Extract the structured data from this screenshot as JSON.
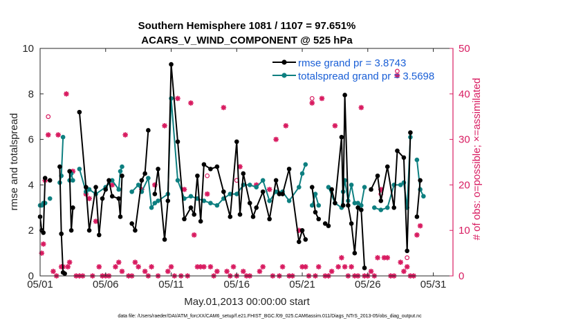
{
  "chart_data": {
    "type": "line",
    "title_line1": "Southern Hemisphere 1081 / 1107 = 97.651%",
    "title_line2": "ACARS_V_WIND_COMPONENT @ 525 hPa",
    "xlabel": "May.01,2013 00:00:00 start",
    "ylabel_left": "rmse and totalspread",
    "ylabel_right": "# of obs: o=possible; ×=assimilated",
    "xlim": [
      0,
      31.5
    ],
    "ylim_left": [
      0,
      10
    ],
    "ylim_right": [
      0,
      50
    ],
    "x_ticks": [
      {
        "x": 0,
        "label": "05/01"
      },
      {
        "x": 5,
        "label": "05/06"
      },
      {
        "x": 10,
        "label": "05/11"
      },
      {
        "x": 15,
        "label": "05/16"
      },
      {
        "x": 20,
        "label": "05/21"
      },
      {
        "x": 25,
        "label": "05/26"
      },
      {
        "x": 30,
        "label": "05/31"
      }
    ],
    "y_ticks_left": [
      "0",
      "2",
      "4",
      "6",
      "8",
      "10"
    ],
    "y_ticks_right": [
      "0",
      "10",
      "20",
      "30",
      "40",
      "50"
    ],
    "colors": {
      "rmse": "#000000",
      "spread": "#0d7f80",
      "obs": "#d81b60",
      "legend_text": "#1a5fd6",
      "frame": "#262626"
    },
    "legend": {
      "rmse": "rmse grand pr = 3.8743",
      "spread": "totalspread grand pr = 3.5698"
    },
    "rmse": [
      {
        "x": 0.0,
        "y": 2.6
      },
      {
        "x": 0.12,
        "y": 2.0
      },
      {
        "x": 0.25,
        "y": 1.9
      },
      {
        "x": 0.38,
        "y": 4.3
      },
      {
        "x": 0.62,
        "y": null
      },
      {
        "x": 0.75,
        "y": 4.2
      },
      {
        "x": 1.0,
        "y": null
      },
      {
        "x": 1.5,
        "y": 4.8
      },
      {
        "x": 1.62,
        "y": 1.85
      },
      {
        "x": 1.75,
        "y": 0.15
      },
      {
        "x": 1.88,
        "y": 0.1
      },
      {
        "x": 2.0,
        "y": null
      },
      {
        "x": 2.25,
        "y": 4.6
      },
      {
        "x": 2.38,
        "y": 2.0
      },
      {
        "x": 2.5,
        "y": 3.0
      },
      {
        "x": 2.6,
        "y": null
      },
      {
        "x": 3.0,
        "y": 7.2
      },
      {
        "x": 3.5,
        "y": 3.9
      },
      {
        "x": 3.75,
        "y": 2.0
      },
      {
        "x": 4.25,
        "y": 3.9
      },
      {
        "x": 4.5,
        "y": 1.8
      },
      {
        "x": 4.75,
        "y": 3.4
      },
      {
        "x": 5.0,
        "y": 3.8
      },
      {
        "x": 5.25,
        "y": 4.2
      },
      {
        "x": 5.5,
        "y": 3.5
      },
      {
        "x": 6.0,
        "y": 3.4
      },
      {
        "x": 6.12,
        "y": 2.6
      },
      {
        "x": 6.25,
        "y": 4.4
      },
      {
        "x": 6.5,
        "y": null
      },
      {
        "x": 7.0,
        "y": 2.3
      },
      {
        "x": 7.25,
        "y": 2.0
      },
      {
        "x": 7.75,
        "y": 4.2
      },
      {
        "x": 8.0,
        "y": 4.5
      },
      {
        "x": 8.25,
        "y": 6.4
      },
      {
        "x": 8.5,
        "y": null
      },
      {
        "x": 8.75,
        "y": 3.6
      },
      {
        "x": 9.0,
        "y": 4.7
      },
      {
        "x": 9.5,
        "y": 1.6
      },
      {
        "x": 9.75,
        "y": 3.3
      },
      {
        "x": 10.0,
        "y": 9.3
      },
      {
        "x": 10.5,
        "y": 5.9
      },
      {
        "x": 11.0,
        "y": 2.5
      },
      {
        "x": 11.5,
        "y": 3.0
      },
      {
        "x": 11.75,
        "y": 2.7
      },
      {
        "x": 12.0,
        "y": 4.4
      },
      {
        "x": 12.25,
        "y": 2.4
      },
      {
        "x": 12.5,
        "y": 4.9
      },
      {
        "x": 13.0,
        "y": 4.7
      },
      {
        "x": 13.5,
        "y": 4.8
      },
      {
        "x": 14.0,
        "y": 3.7
      },
      {
        "x": 14.5,
        "y": 2.6
      },
      {
        "x": 15.0,
        "y": 5.9
      },
      {
        "x": 15.25,
        "y": 2.7
      },
      {
        "x": 15.5,
        "y": 4.5
      },
      {
        "x": 16.0,
        "y": 3.2
      },
      {
        "x": 16.25,
        "y": 2.6
      },
      {
        "x": 16.5,
        "y": 3.0
      },
      {
        "x": 17.0,
        "y": 3.7
      },
      {
        "x": 17.5,
        "y": 2.5
      },
      {
        "x": 18.0,
        "y": 4.2
      },
      {
        "x": 18.25,
        "y": 3.6
      },
      {
        "x": 18.5,
        "y": 3.6
      },
      {
        "x": 19.0,
        "y": 4.7
      },
      {
        "x": 19.75,
        "y": 1.5
      },
      {
        "x": 20.0,
        "y": 2.0
      },
      {
        "x": 20.25,
        "y": 1.6
      },
      {
        "x": 20.5,
        "y": null
      },
      {
        "x": 20.75,
        "y": 3.9
      },
      {
        "x": 21.0,
        "y": 2.8
      },
      {
        "x": 21.25,
        "y": 2.5
      },
      {
        "x": 21.5,
        "y": null
      },
      {
        "x": 21.75,
        "y": 2.3
      },
      {
        "x": 22.0,
        "y": 2.2
      },
      {
        "x": 22.25,
        "y": 3.8
      },
      {
        "x": 22.5,
        "y": 3.2
      },
      {
        "x": 23.0,
        "y": 6.1
      },
      {
        "x": 23.12,
        "y": 3.1
      },
      {
        "x": 23.25,
        "y": 7.95
      },
      {
        "x": 23.5,
        "y": 3.1
      },
      {
        "x": 23.75,
        "y": 2.3
      },
      {
        "x": 24.0,
        "y": 1.0
      },
      {
        "x": 24.25,
        "y": 3.0
      },
      {
        "x": 24.5,
        "y": 2.9
      },
      {
        "x": 24.75,
        "y": 0.35
      },
      {
        "x": 25.0,
        "y": null
      },
      {
        "x": 25.25,
        "y": 3.8
      },
      {
        "x": 25.75,
        "y": 4.4
      },
      {
        "x": 26.0,
        "y": 3.3
      },
      {
        "x": 26.5,
        "y": 4.8
      },
      {
        "x": 27.0,
        "y": 3.0
      },
      {
        "x": 27.25,
        "y": 5.5
      },
      {
        "x": 27.75,
        "y": 5.2
      },
      {
        "x": 28.0,
        "y": 1.1
      },
      {
        "x": 28.25,
        "y": 6.3
      },
      {
        "x": 28.5,
        "y": null
      },
      {
        "x": 28.75,
        "y": 2.6
      },
      {
        "x": 29.0,
        "y": 4.2
      }
    ],
    "spread": [
      {
        "x": 0.0,
        "y": 3.1
      },
      {
        "x": 0.12,
        "y": 3.1
      },
      {
        "x": 0.25,
        "y": 3.2
      },
      {
        "x": 0.38,
        "y": 3.2
      },
      {
        "x": 0.62,
        "y": null
      },
      {
        "x": 0.75,
        "y": 3.4
      },
      {
        "x": 1.0,
        "y": null
      },
      {
        "x": 1.5,
        "y": 4.1
      },
      {
        "x": 1.62,
        "y": 4.4
      },
      {
        "x": 1.75,
        "y": 6.1
      },
      {
        "x": 2.0,
        "y": null
      },
      {
        "x": 2.25,
        "y": 4.2
      },
      {
        "x": 2.38,
        "y": 4.5
      },
      {
        "x": 2.5,
        "y": 4.2
      },
      {
        "x": 2.6,
        "y": null
      },
      {
        "x": 3.0,
        "y": 4.7
      },
      {
        "x": 3.5,
        "y": 3.7
      },
      {
        "x": 3.75,
        "y": 3.8
      },
      {
        "x": 4.25,
        "y": 3.6
      },
      {
        "x": 5.0,
        "y": 3.9
      },
      {
        "x": 5.5,
        "y": 4.2
      },
      {
        "x": 6.0,
        "y": 3.8
      },
      {
        "x": 6.12,
        "y": 4.6
      },
      {
        "x": 6.25,
        "y": 4.8
      },
      {
        "x": 6.5,
        "y": null
      },
      {
        "x": 7.0,
        "y": 3.7
      },
      {
        "x": 7.5,
        "y": 4.0
      },
      {
        "x": 7.75,
        "y": 3.7
      },
      {
        "x": 8.25,
        "y": 4.3
      },
      {
        "x": 8.5,
        "y": 3.0
      },
      {
        "x": 8.75,
        "y": 3.2
      },
      {
        "x": 9.0,
        "y": 3.3
      },
      {
        "x": 9.75,
        "y": 3.6
      },
      {
        "x": 10.0,
        "y": 7.8
      },
      {
        "x": 10.5,
        "y": 4.2
      },
      {
        "x": 11.0,
        "y": 3.4
      },
      {
        "x": 11.5,
        "y": 3.5
      },
      {
        "x": 12.0,
        "y": 3.4
      },
      {
        "x": 12.5,
        "y": 3.3
      },
      {
        "x": 13.0,
        "y": 3.2
      },
      {
        "x": 13.5,
        "y": 3.1
      },
      {
        "x": 14.0,
        "y": 3.4
      },
      {
        "x": 14.5,
        "y": 3.6
      },
      {
        "x": 15.0,
        "y": 3.6
      },
      {
        "x": 15.5,
        "y": 4.0
      },
      {
        "x": 16.0,
        "y": 4.0
      },
      {
        "x": 16.5,
        "y": 3.9
      },
      {
        "x": 17.0,
        "y": 4.2
      },
      {
        "x": 17.5,
        "y": 3.3
      },
      {
        "x": 18.0,
        "y": 3.7
      },
      {
        "x": 18.5,
        "y": 3.7
      },
      {
        "x": 19.0,
        "y": 3.3
      },
      {
        "x": 19.75,
        "y": 3.9
      },
      {
        "x": 20.0,
        "y": 4.5
      },
      {
        "x": 20.25,
        "y": 4.9
      },
      {
        "x": 20.5,
        "y": null
      },
      {
        "x": 20.75,
        "y": 3.1
      },
      {
        "x": 21.0,
        "y": 3.6
      },
      {
        "x": 21.25,
        "y": 3.1
      },
      {
        "x": 21.5,
        "y": null
      },
      {
        "x": 22.0,
        "y": 3.9
      },
      {
        "x": 22.5,
        "y": 3.2
      },
      {
        "x": 23.0,
        "y": 3.0
      },
      {
        "x": 23.12,
        "y": 3.7
      },
      {
        "x": 23.25,
        "y": 4.2
      },
      {
        "x": 23.5,
        "y": 3.3
      },
      {
        "x": 23.75,
        "y": 4.0
      },
      {
        "x": 24.0,
        "y": 3.2
      },
      {
        "x": 24.25,
        "y": 3.2
      },
      {
        "x": 24.5,
        "y": 3.1
      },
      {
        "x": 24.75,
        "y": 3.9
      },
      {
        "x": 25.0,
        "y": null
      },
      {
        "x": 25.5,
        "y": 3.0
      },
      {
        "x": 26.0,
        "y": 2.9
      },
      {
        "x": 26.5,
        "y": 3.0
      },
      {
        "x": 27.0,
        "y": 4.0
      },
      {
        "x": 27.5,
        "y": 4.0
      },
      {
        "x": 27.75,
        "y": 4.1
      },
      {
        "x": 28.0,
        "y": 3.0
      },
      {
        "x": 28.25,
        "y": 6.1
      },
      {
        "x": 28.5,
        "y": null
      },
      {
        "x": 28.75,
        "y": 5.1
      },
      {
        "x": 29.0,
        "y": 3.8
      },
      {
        "x": 29.25,
        "y": 3.5
      }
    ],
    "obs_assimilated": [
      {
        "x": 0.12,
        "y": 5
      },
      {
        "x": 0.25,
        "y": 7
      },
      {
        "x": 0.38,
        "y": 21
      },
      {
        "x": 0.62,
        "y": 31
      },
      {
        "x": 1.0,
        "y": 1
      },
      {
        "x": 1.25,
        "y": 0
      },
      {
        "x": 1.38,
        "y": 31
      },
      {
        "x": 1.62,
        "y": 2
      },
      {
        "x": 1.75,
        "y": 2
      },
      {
        "x": 2.0,
        "y": 40
      },
      {
        "x": 2.12,
        "y": 2
      },
      {
        "x": 2.25,
        "y": 3
      },
      {
        "x": 2.5,
        "y": 23
      },
      {
        "x": 2.75,
        "y": 0
      },
      {
        "x": 3.0,
        "y": 0
      },
      {
        "x": 3.25,
        "y": 0
      },
      {
        "x": 3.5,
        "y": 18
      },
      {
        "x": 3.75,
        "y": 17
      },
      {
        "x": 4.0,
        "y": 0
      },
      {
        "x": 4.25,
        "y": 12
      },
      {
        "x": 4.5,
        "y": 2
      },
      {
        "x": 4.75,
        "y": 0
      },
      {
        "x": 5.0,
        "y": 0
      },
      {
        "x": 5.25,
        "y": 0
      },
      {
        "x": 5.5,
        "y": 20
      },
      {
        "x": 5.75,
        "y": 2
      },
      {
        "x": 6.0,
        "y": 3
      },
      {
        "x": 6.25,
        "y": 1
      },
      {
        "x": 6.5,
        "y": 31
      },
      {
        "x": 6.75,
        "y": 0
      },
      {
        "x": 7.0,
        "y": 0
      },
      {
        "x": 7.25,
        "y": 3
      },
      {
        "x": 7.5,
        "y": 2
      },
      {
        "x": 7.75,
        "y": 19
      },
      {
        "x": 8.0,
        "y": 1
      },
      {
        "x": 8.25,
        "y": 0
      },
      {
        "x": 8.5,
        "y": 2
      },
      {
        "x": 8.75,
        "y": 20
      },
      {
        "x": 9.0,
        "y": 0
      },
      {
        "x": 9.5,
        "y": 33
      },
      {
        "x": 9.75,
        "y": 1
      },
      {
        "x": 10.0,
        "y": 2
      },
      {
        "x": 10.25,
        "y": 0
      },
      {
        "x": 10.5,
        "y": 39
      },
      {
        "x": 10.75,
        "y": 0
      },
      {
        "x": 11.0,
        "y": 19
      },
      {
        "x": 11.25,
        "y": 0
      },
      {
        "x": 11.5,
        "y": 38
      },
      {
        "x": 11.75,
        "y": 9
      },
      {
        "x": 12.0,
        "y": 2
      },
      {
        "x": 12.25,
        "y": 2
      },
      {
        "x": 12.5,
        "y": 2
      },
      {
        "x": 12.75,
        "y": 18
      },
      {
        "x": 13.0,
        "y": 2
      },
      {
        "x": 13.25,
        "y": 0
      },
      {
        "x": 13.5,
        "y": 1
      },
      {
        "x": 14.0,
        "y": 37
      },
      {
        "x": 14.25,
        "y": 1
      },
      {
        "x": 14.5,
        "y": 0
      },
      {
        "x": 14.75,
        "y": 2
      },
      {
        "x": 15.0,
        "y": 0
      },
      {
        "x": 15.25,
        "y": 24
      },
      {
        "x": 15.5,
        "y": 1
      },
      {
        "x": 15.75,
        "y": 0
      },
      {
        "x": 16.0,
        "y": 0
      },
      {
        "x": 16.5,
        "y": 20
      },
      {
        "x": 16.75,
        "y": 1
      },
      {
        "x": 17.0,
        "y": 2
      },
      {
        "x": 17.5,
        "y": 19
      },
      {
        "x": 17.75,
        "y": 0
      },
      {
        "x": 18.0,
        "y": 30
      },
      {
        "x": 18.25,
        "y": 0
      },
      {
        "x": 18.5,
        "y": 2
      },
      {
        "x": 18.75,
        "y": 33
      },
      {
        "x": 19.0,
        "y": 0
      },
      {
        "x": 19.25,
        "y": 0
      },
      {
        "x": 19.75,
        "y": 10
      },
      {
        "x": 20.0,
        "y": 2
      },
      {
        "x": 20.25,
        "y": 2
      },
      {
        "x": 20.5,
        "y": 0
      },
      {
        "x": 20.75,
        "y": 38
      },
      {
        "x": 21.0,
        "y": 0
      },
      {
        "x": 21.25,
        "y": 2
      },
      {
        "x": 21.5,
        "y": 39
      },
      {
        "x": 21.75,
        "y": 0
      },
      {
        "x": 22.0,
        "y": 0
      },
      {
        "x": 22.25,
        "y": 1
      },
      {
        "x": 22.5,
        "y": 33
      },
      {
        "x": 22.75,
        "y": 2
      },
      {
        "x": 23.0,
        "y": 4
      },
      {
        "x": 23.25,
        "y": 2
      },
      {
        "x": 23.5,
        "y": 0
      },
      {
        "x": 23.75,
        "y": 2
      },
      {
        "x": 24.0,
        "y": 0
      },
      {
        "x": 24.25,
        "y": 0
      },
      {
        "x": 24.5,
        "y": 37
      },
      {
        "x": 24.75,
        "y": 0
      },
      {
        "x": 25.0,
        "y": 0
      },
      {
        "x": 25.25,
        "y": 1
      },
      {
        "x": 25.5,
        "y": 0
      },
      {
        "x": 25.75,
        "y": 4
      },
      {
        "x": 26.0,
        "y": 19
      },
      {
        "x": 26.25,
        "y": 4
      },
      {
        "x": 26.5,
        "y": 4
      },
      {
        "x": 26.75,
        "y": 0
      },
      {
        "x": 27.0,
        "y": 0
      },
      {
        "x": 27.25,
        "y": 44
      },
      {
        "x": 27.5,
        "y": 3
      },
      {
        "x": 27.75,
        "y": 1
      },
      {
        "x": 28.0,
        "y": 2
      },
      {
        "x": 28.25,
        "y": 0
      },
      {
        "x": 28.5,
        "y": 0
      },
      {
        "x": 28.75,
        "y": 9
      },
      {
        "x": 29.0,
        "y": 11
      }
    ],
    "obs_possible": [
      {
        "x": 0.62,
        "y": 35
      },
      {
        "x": 12.75,
        "y": 22
      },
      {
        "x": 15.0,
        "y": 21
      },
      {
        "x": 20.75,
        "y": 39
      },
      {
        "x": 26.0,
        "y": 18
      },
      {
        "x": 27.25,
        "y": 45
      },
      {
        "x": 28.0,
        "y": 4
      }
    ],
    "footnote": "data file: /Users/raeder/DAI/ATM_forcXX/CAM6_setup/f.e21.FHIST_BGC.f09_025.CAM6assim.011/Diags_NTrS_2013-05/obs_diag_output.nc"
  }
}
